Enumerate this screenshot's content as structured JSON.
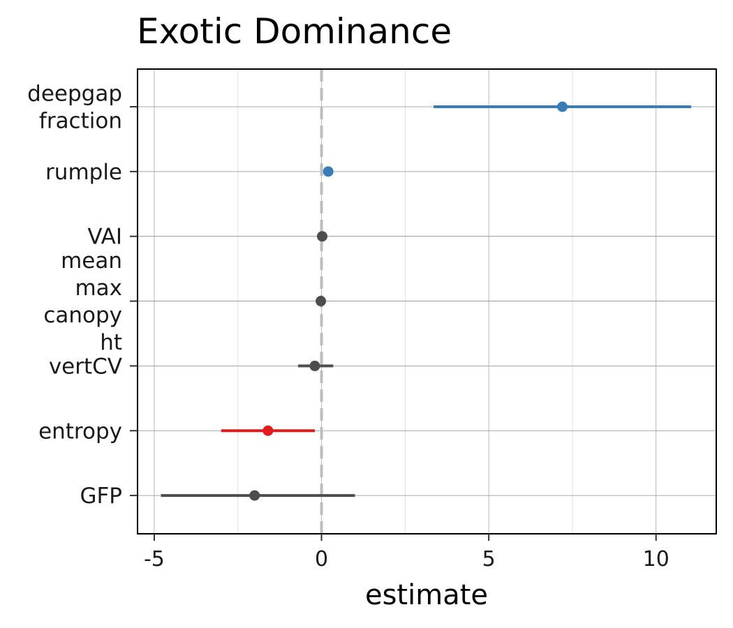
{
  "chart_data": {
    "type": "scatter",
    "title": "Exotic Dominance",
    "xlabel": "estimate",
    "ylabel": "",
    "xlim": [
      -5.5,
      11.8
    ],
    "x_ticks": [
      -5,
      0,
      5,
      10
    ],
    "x_tick_labels": [
      "-5",
      "0",
      "5",
      "10"
    ],
    "grid": true,
    "reference_line": 0,
    "colors": {
      "positive": "#377eb8",
      "negative": "#e41a1c",
      "neutral": "#4d4d4d",
      "reference_line": "#bdbdbd"
    },
    "points": [
      {
        "label_lines": [
          "deepgap",
          "fraction"
        ],
        "estimate": 7.2,
        "low": 3.35,
        "high": 11.05,
        "color": "#377eb8"
      },
      {
        "label_lines": [
          "rumple"
        ],
        "estimate": 0.2,
        "low": 0.15,
        "high": 0.25,
        "color": "#377eb8"
      },
      {
        "label_lines": [
          "VAI"
        ],
        "estimate": 0.02,
        "low": -0.02,
        "high": 0.06,
        "color": "#4d4d4d"
      },
      {
        "label_lines": [
          "mean",
          "max",
          "canopy",
          "ht"
        ],
        "estimate": -0.02,
        "low": -0.06,
        "high": 0.02,
        "color": "#4d4d4d"
      },
      {
        "label_lines": [
          "vertCV"
        ],
        "estimate": -0.2,
        "low": -0.7,
        "high": 0.35,
        "color": "#4d4d4d"
      },
      {
        "label_lines": [
          "entropy"
        ],
        "estimate": -1.6,
        "low": -3.0,
        "high": -0.2,
        "color": "#e41a1c"
      },
      {
        "label_lines": [
          "GFP"
        ],
        "estimate": -2.0,
        "low": -4.8,
        "high": 1.0,
        "color": "#4d4d4d"
      }
    ]
  }
}
